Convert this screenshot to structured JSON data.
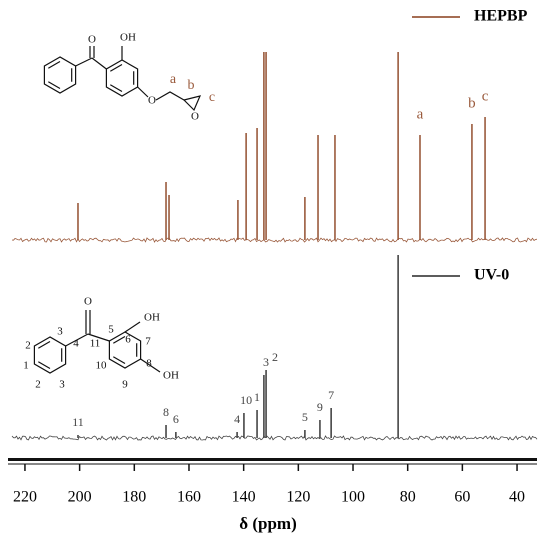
{
  "chart_data": {
    "type": "spectrum",
    "xlabel": "δ (ppm)",
    "xlim": [
      226.2,
      32.7
    ],
    "xticks": [
      220,
      200,
      180,
      160,
      140,
      120,
      100,
      80,
      60,
      40
    ],
    "series": [
      {
        "name": "HEPBP",
        "color": "#9a5a3c",
        "ylim": [
          0,
          200
        ],
        "x": [
          200.6,
          168.4,
          167.3,
          142.1,
          139.1,
          135.1,
          132.6,
          131.8,
          117.6,
          112.8,
          106.6,
          83.5,
          75.5,
          56.5,
          51.7
        ],
        "values": [
          37,
          58,
          45,
          40,
          107,
          112,
          188,
          188,
          43,
          105,
          105,
          188,
          105,
          116,
          123
        ],
        "peak_labels": [
          null,
          null,
          null,
          null,
          null,
          null,
          null,
          null,
          null,
          null,
          null,
          null,
          "a",
          "b",
          "c"
        ]
      },
      {
        "name": "UV-0",
        "color": "#454545",
        "ylim": [
          0,
          200
        ],
        "x": [
          200.6,
          168.4,
          164.8,
          142.4,
          139.9,
          135.1,
          132.6,
          131.8,
          117.6,
          112.1,
          108.0,
          83.5
        ],
        "values": [
          3,
          13,
          6,
          6,
          25,
          28,
          63,
          68,
          8,
          18,
          30,
          183
        ],
        "peak_labels": [
          "11",
          "8",
          "6",
          "4",
          "10",
          "1",
          "3",
          "2",
          "5",
          "9",
          "7",
          null
        ]
      }
    ]
  },
  "structures": {
    "hepbp": [
      "O",
      "OH",
      "O",
      "O",
      "a",
      "b",
      "c"
    ],
    "uv0": [
      "O",
      "11",
      "1",
      "2",
      "3",
      "4",
      "2",
      "3",
      "5",
      "6",
      "7",
      "8",
      "9",
      "10",
      "OH",
      "OH"
    ]
  }
}
